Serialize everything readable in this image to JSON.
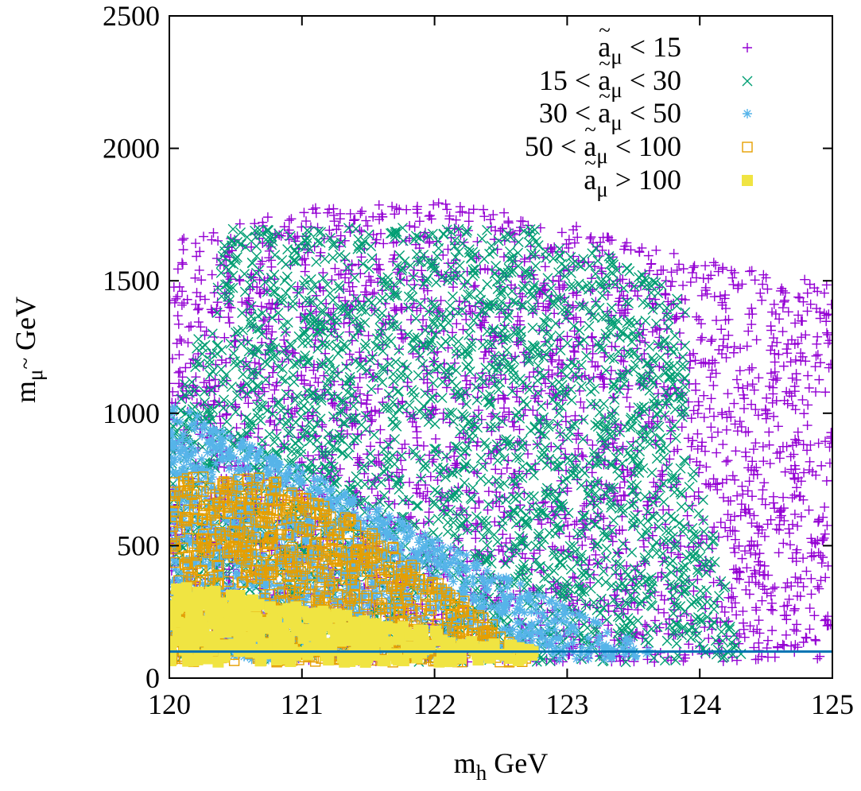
{
  "chart_data": {
    "type": "scatter",
    "xlabel": {
      "base": "m",
      "sub": "h",
      "unit": " GeV"
    },
    "ylabel": {
      "base": "m",
      "sub": "μ",
      "tilde": "~",
      "unit": " GeV"
    },
    "xlim": [
      120,
      125
    ],
    "ylim": [
      0,
      2500
    ],
    "x_ticks": [
      120,
      121,
      122,
      123,
      124,
      125
    ],
    "x_tick_labels": [
      "120",
      "121",
      "122",
      "123",
      "124",
      "125"
    ],
    "y_ticks": [
      0,
      500,
      1000,
      1500,
      2000,
      2500
    ],
    "y_tick_labels": [
      "0",
      "500",
      "1000",
      "1500",
      "2000",
      "2500"
    ],
    "grid": false,
    "legend_position": "top-right",
    "horizontal_line": {
      "y": 100,
      "color": "#0072b2"
    },
    "series": [
      {
        "name": {
          "prefix": "",
          "var": "a",
          "tilde": "~",
          "sub": "μ",
          "suffix": " < 15"
        },
        "marker": "plus",
        "color": "#9400d3",
        "region": {
          "approx_x": [
            120.0,
            125.0
          ],
          "approx_y": [
            50,
            1880
          ]
        }
      },
      {
        "name": {
          "prefix": "15 < ",
          "var": "a",
          "tilde": "~",
          "sub": "μ",
          "suffix": " < 30"
        },
        "marker": "cross",
        "color": "#009e73",
        "region": {
          "approx_x": [
            120.0,
            124.7
          ],
          "approx_y": [
            60,
            1850
          ]
        }
      },
      {
        "name": {
          "prefix": "30 < ",
          "var": "a",
          "tilde": "~",
          "sub": "μ",
          "suffix": " < 50"
        },
        "marker": "asterisk",
        "color": "#56b4e9",
        "region": {
          "approx_x": [
            120.0,
            123.7
          ],
          "approx_y": [
            70,
            1500
          ]
        }
      },
      {
        "name": {
          "prefix": "50 < ",
          "var": "a",
          "tilde": "~",
          "sub": "μ",
          "suffix": " < 100"
        },
        "marker": "open-square",
        "color": "#e69f00",
        "region": {
          "approx_x": [
            120.0,
            123.9
          ],
          "approx_y": [
            50,
            860
          ]
        }
      },
      {
        "name": {
          "prefix": "",
          "var": "a",
          "tilde": "~",
          "sub": "μ",
          "suffix": " > 100"
        },
        "marker": "filled-square",
        "color": "#f0e442",
        "region": {
          "approx_x": [
            120.0,
            122.8
          ],
          "approx_y": [
            50,
            380
          ]
        }
      }
    ]
  }
}
